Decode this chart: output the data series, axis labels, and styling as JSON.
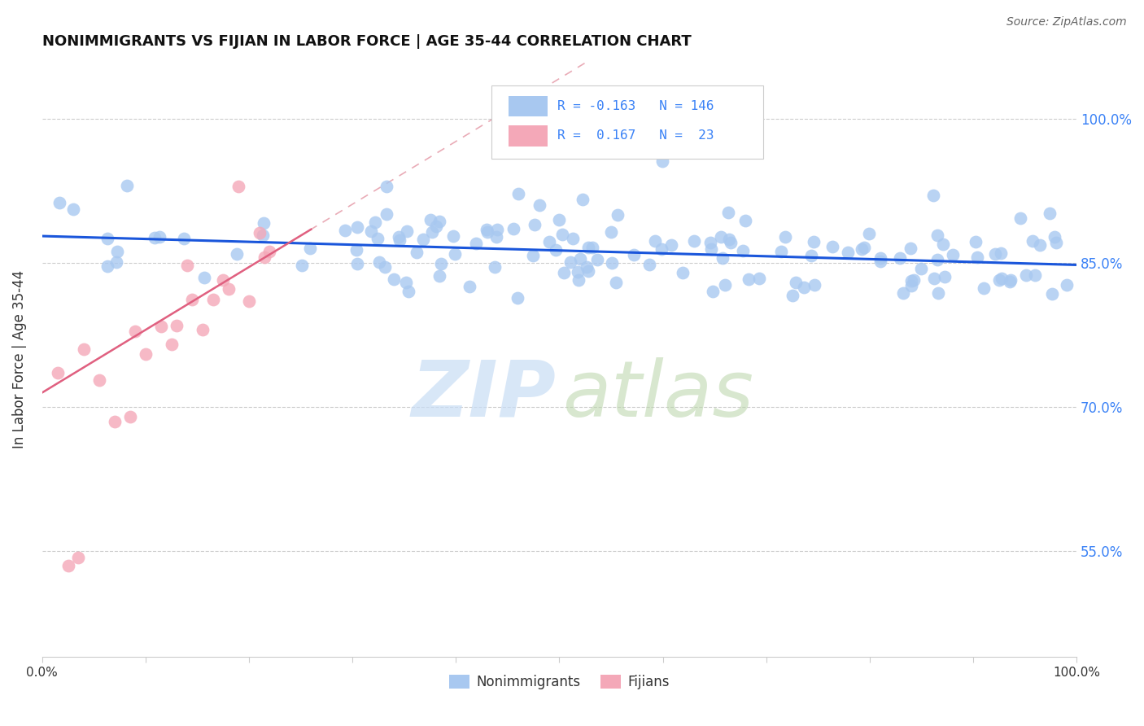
{
  "title": "NONIMMIGRANTS VS FIJIAN IN LABOR FORCE | AGE 35-44 CORRELATION CHART",
  "source": "Source: ZipAtlas.com",
  "ylabel": "In Labor Force | Age 35-44",
  "ytick_labels": [
    "55.0%",
    "70.0%",
    "85.0%",
    "100.0%"
  ],
  "ytick_values": [
    0.55,
    0.7,
    0.85,
    1.0
  ],
  "xlim": [
    0.0,
    1.0
  ],
  "ylim": [
    0.44,
    1.06
  ],
  "nonimmigrant_color": "#a8c8f0",
  "fijian_color": "#f4a8b8",
  "nonimmigrant_line_color": "#1a56db",
  "fijian_line_color": "#e06080",
  "fijian_dash_color": "#e08898",
  "background_color": "#ffffff",
  "grid_color": "#cccccc",
  "legend_box_color": "#e8e8e8",
  "watermark_zip_color": "#c8ddf5",
  "watermark_atlas_color": "#b8d4a8",
  "nonimmigrant_trend_x": [
    0.0,
    1.0
  ],
  "nonimmigrant_trend_y": [
    0.878,
    0.848
  ],
  "fijian_trend_x": [
    0.0,
    0.26
  ],
  "fijian_trend_y": [
    0.715,
    0.885
  ],
  "seed": 42
}
